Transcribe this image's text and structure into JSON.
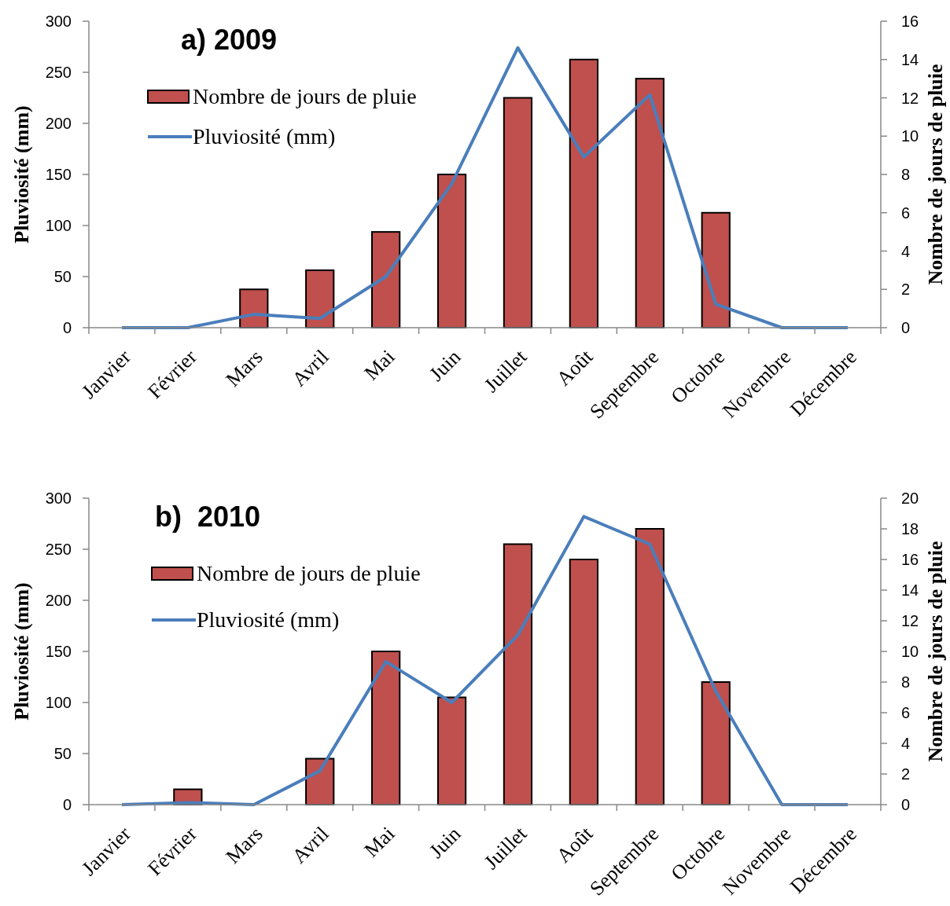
{
  "chart_data": [
    {
      "type": "bar",
      "title": "a) 2009",
      "ylabel": "Pluviosité (mm)",
      "y2label": "Nombre de jours de pluie",
      "categories": [
        "Janvier",
        "Février",
        "Mars",
        "Avril",
        "Mai",
        "Juin",
        "Juillet",
        "Août",
        "Septembre",
        "Octobre",
        "Novembre",
        "Décembre"
      ],
      "series": [
        {
          "name": "Nombre de jours de pluie",
          "axis": "y2",
          "color": "#c0504d",
          "values": [
            0,
            0,
            2,
            3,
            5,
            8,
            12,
            14,
            13,
            6,
            0,
            0
          ]
        },
        {
          "name": "Pluviosité (mm)",
          "type": "line",
          "color": "#4a7ebb",
          "values": [
            0,
            0,
            13,
            9,
            50,
            141,
            274,
            167,
            228,
            23,
            0,
            0
          ]
        }
      ],
      "ylim": [
        0,
        300
      ],
      "yticks": [
        0,
        50,
        100,
        150,
        200,
        250,
        300
      ],
      "y2lim": [
        0,
        16
      ],
      "y2ticks": [
        0,
        2,
        4,
        6,
        8,
        10,
        12,
        14,
        16
      ],
      "legend": "top left"
    },
    {
      "type": "bar",
      "title": "b)  2010",
      "ylabel": "Pluviosité (mm)",
      "y2label": "Nombre de jours de pluie",
      "categories": [
        "Janvier",
        "Février",
        "Mars",
        "Avril",
        "Mai",
        "Juin",
        "Juillet",
        "Août",
        "Septembre",
        "Octobre",
        "Novembre",
        "Décembre"
      ],
      "series": [
        {
          "name": "Nombre de jours de pluie",
          "axis": "y2",
          "color": "#c0504d",
          "values": [
            0,
            1,
            0,
            3,
            10,
            7,
            17,
            16,
            18,
            8,
            0,
            0
          ]
        },
        {
          "name": "Pluviosité (mm)",
          "type": "line",
          "color": "#4a7ebb",
          "values": [
            0,
            2,
            0,
            33,
            140,
            100,
            166,
            282,
            255,
            111,
            0,
            0
          ]
        }
      ],
      "ylim": [
        0,
        300
      ],
      "yticks": [
        0,
        50,
        100,
        150,
        200,
        250,
        300
      ],
      "y2lim": [
        0,
        20
      ],
      "y2ticks": [
        0,
        2,
        4,
        6,
        8,
        10,
        12,
        14,
        16,
        18,
        20
      ],
      "legend": "top left"
    }
  ]
}
